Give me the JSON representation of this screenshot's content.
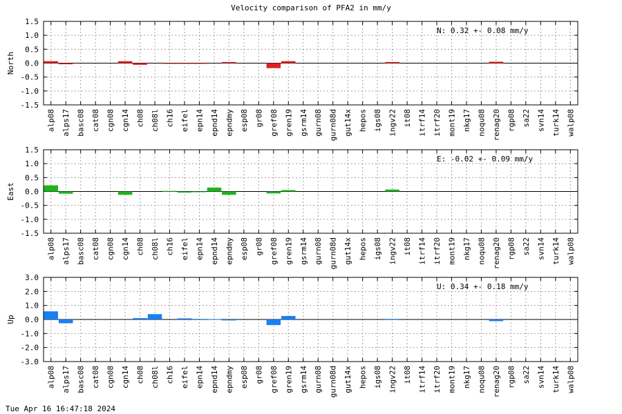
{
  "chart_data": {
    "type": "bar",
    "title": "Velocity comparison of PFA2 in mm/y",
    "grid": true,
    "categories": [
      "alp08",
      "alps17",
      "basc08",
      "cat08",
      "cgn08",
      "cgn14",
      "ch08",
      "ch08l",
      "ch16",
      "eifel",
      "epn14",
      "epnd14",
      "epndmy",
      "esp08",
      "gr08",
      "gref08",
      "gren19",
      "gsrm14",
      "gurn08",
      "gurn08d",
      "gut14x",
      "hepos",
      "igs08",
      "ingv22",
      "it08",
      "itrf14",
      "itrf20",
      "mont19",
      "nkg17",
      "noqu08",
      "renag20",
      "rgp08",
      "sa22",
      "svn14",
      "turk14",
      "walp08"
    ],
    "panels": [
      {
        "ylabel": "North",
        "color": "#e02020",
        "ylim": [
          -1.5,
          1.5
        ],
        "yticks": [
          "1.5",
          "1.0",
          "0.5",
          "0.0",
          "-0.5",
          "-1.0",
          "-1.5"
        ],
        "stat_label": "N:   0.32 +-  0.08 mm/y",
        "values": [
          0.07,
          -0.04,
          0,
          0,
          0,
          0.07,
          -0.06,
          0,
          -0.01,
          -0.01,
          -0.01,
          0,
          0.04,
          0,
          0,
          -0.18,
          0.07,
          0,
          0,
          0,
          0,
          0,
          0,
          0.04,
          0,
          0,
          0,
          0,
          0,
          0,
          0.05,
          0,
          0,
          0,
          0,
          0
        ]
      },
      {
        "ylabel": "East",
        "color": "#1cb51c",
        "ylim": [
          -1.5,
          1.5
        ],
        "yticks": [
          "1.5",
          "1.0",
          "0.5",
          "0.0",
          "-0.5",
          "-1.0",
          "-1.5"
        ],
        "stat_label": "E:  -0.02 +-  0.09 mm/y",
        "values": [
          0.22,
          -0.08,
          0,
          0,
          0,
          -0.12,
          0,
          0,
          0.02,
          -0.04,
          -0.02,
          0.14,
          -0.12,
          0,
          0,
          -0.07,
          0.05,
          0,
          0,
          0,
          0,
          0,
          0,
          0.07,
          0,
          0,
          0,
          0,
          0,
          0,
          0,
          0,
          0,
          0,
          0,
          0
        ]
      },
      {
        "ylabel": "Up",
        "color": "#1a80f0",
        "ylim": [
          -3.0,
          3.0
        ],
        "yticks": [
          "3.0",
          "2.0",
          "1.0",
          "0.0",
          "-1.0",
          "-2.0",
          "-3.0"
        ],
        "stat_label": "U:   0.34 +-  0.18 mm/y",
        "values": [
          0.58,
          -0.27,
          0,
          0,
          0,
          0,
          0.1,
          0.38,
          0,
          0.08,
          0.04,
          0.03,
          -0.07,
          0,
          0,
          -0.4,
          0.25,
          0,
          0,
          0,
          0,
          0,
          0,
          0.04,
          0,
          0,
          0,
          0,
          0,
          0,
          -0.12,
          0,
          0,
          0,
          0,
          0
        ]
      }
    ]
  },
  "footer": {
    "timestamp": "Tue Apr 16 16:47:18 2024"
  }
}
